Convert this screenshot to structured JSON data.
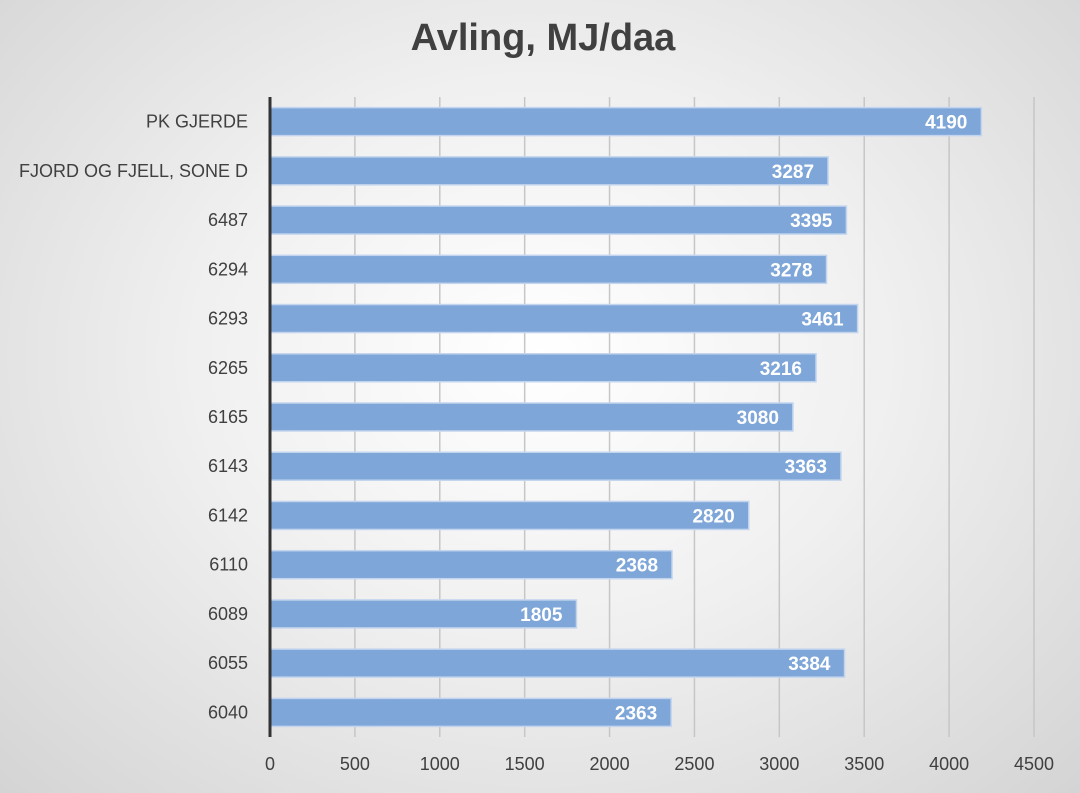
{
  "chart_data": {
    "type": "bar",
    "orientation": "horizontal",
    "title": "Avling, MJ/daa",
    "xlabel": "",
    "ylabel": "",
    "categories": [
      "PK GJERDE",
      "FJORD OG FJELL, SONE D",
      "6487",
      "6294",
      "6293",
      "6265",
      "6165",
      "6143",
      "6142",
      "6110",
      "6089",
      "6055",
      "6040"
    ],
    "values": [
      4190,
      3287,
      3395,
      3278,
      3461,
      3216,
      3080,
      3363,
      2820,
      2368,
      1805,
      3384,
      2363
    ],
    "xlim": [
      0,
      4500
    ],
    "xticks": [
      0,
      500,
      1000,
      1500,
      2000,
      2500,
      3000,
      3500,
      4000,
      4500
    ],
    "grid": true,
    "legend": "none",
    "data_labels": true,
    "bar_color": "#7fa6d8"
  }
}
